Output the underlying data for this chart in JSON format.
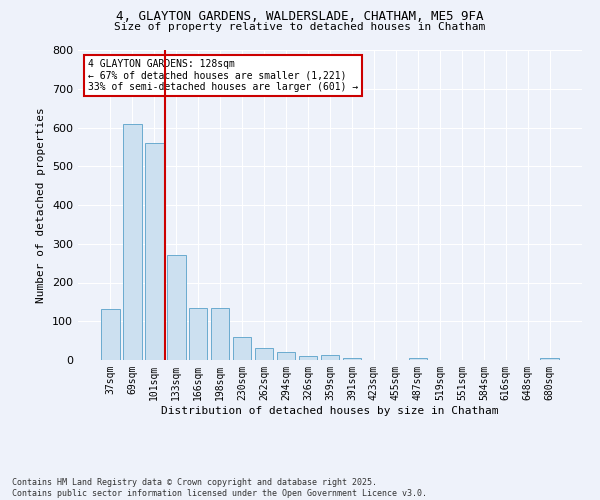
{
  "title": "4, GLAYTON GARDENS, WALDERSLADE, CHATHAM, ME5 9FA",
  "subtitle": "Size of property relative to detached houses in Chatham",
  "xlabel": "Distribution of detached houses by size in Chatham",
  "ylabel": "Number of detached properties",
  "categories": [
    "37sqm",
    "69sqm",
    "101sqm",
    "133sqm",
    "166sqm",
    "198sqm",
    "230sqm",
    "262sqm",
    "294sqm",
    "326sqm",
    "359sqm",
    "391sqm",
    "423sqm",
    "455sqm",
    "487sqm",
    "519sqm",
    "551sqm",
    "584sqm",
    "616sqm",
    "648sqm",
    "680sqm"
  ],
  "values": [
    132,
    608,
    560,
    270,
    135,
    135,
    60,
    30,
    20,
    10,
    12,
    5,
    0,
    0,
    5,
    0,
    0,
    0,
    0,
    0,
    5
  ],
  "bar_color": "#cce0f0",
  "bar_edge_color": "#6aabcf",
  "vline_color": "#cc0000",
  "annotation_text": "4 GLAYTON GARDENS: 128sqm\n← 67% of detached houses are smaller (1,221)\n33% of semi-detached houses are larger (601) →",
  "annotation_box_color": "#cc0000",
  "background_color": "#eef2fa",
  "footer_line1": "Contains HM Land Registry data © Crown copyright and database right 2025.",
  "footer_line2": "Contains public sector information licensed under the Open Government Licence v3.0.",
  "ylim": [
    0,
    800
  ],
  "yticks": [
    0,
    100,
    200,
    300,
    400,
    500,
    600,
    700,
    800
  ]
}
